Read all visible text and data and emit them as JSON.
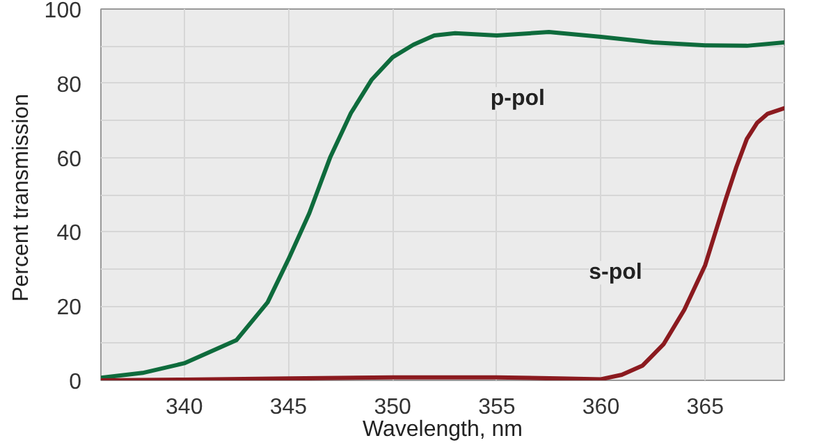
{
  "chart_data": {
    "type": "line",
    "xlabel": "Wavelength, nm",
    "ylabel": "Percent  transmission",
    "xlim": [
      336,
      368.8
    ],
    "ylim": [
      0,
      100
    ],
    "xticks": [
      340,
      345,
      350,
      355,
      360,
      365
    ],
    "yticks": [
      0,
      {
        "value": 10,
        "label": null
      },
      20,
      {
        "value": 30,
        "label": null
      },
      40,
      {
        "value": 50,
        "label": null
      },
      60,
      {
        "value": 70,
        "label": null
      },
      80,
      {
        "value": 90,
        "label": null
      },
      100
    ],
    "grid": true,
    "legend": false,
    "marker": "none",
    "line_style": "solid",
    "series": [
      {
        "name": "p-pol",
        "color": "#0e6b3c",
        "x": [
          336,
          338,
          340,
          342.5,
          344,
          345,
          346,
          347,
          348,
          349,
          350,
          351,
          352,
          353,
          355,
          357.5,
          360,
          362.5,
          365,
          367,
          368.8
        ],
        "values": [
          0.7,
          2,
          4.6,
          10.8,
          21,
          32.6,
          45,
          60,
          72,
          81,
          87,
          90.4,
          92.9,
          93.5,
          92.9,
          93.8,
          92.5,
          91,
          90.2,
          90.1,
          91
        ]
      },
      {
        "name": "s-pol",
        "color": "#8b1a1f",
        "x": [
          336,
          340,
          345,
          350,
          355,
          358,
          360,
          361,
          362,
          363,
          364,
          365,
          366,
          366.5,
          367,
          367.5,
          368,
          368.8
        ],
        "values": [
          0,
          0.2,
          0.5,
          0.8,
          0.8,
          0.5,
          0.3,
          1.5,
          4,
          9.7,
          19,
          31,
          49,
          57.5,
          65,
          69.4,
          71.8,
          73.3
        ]
      }
    ]
  }
}
